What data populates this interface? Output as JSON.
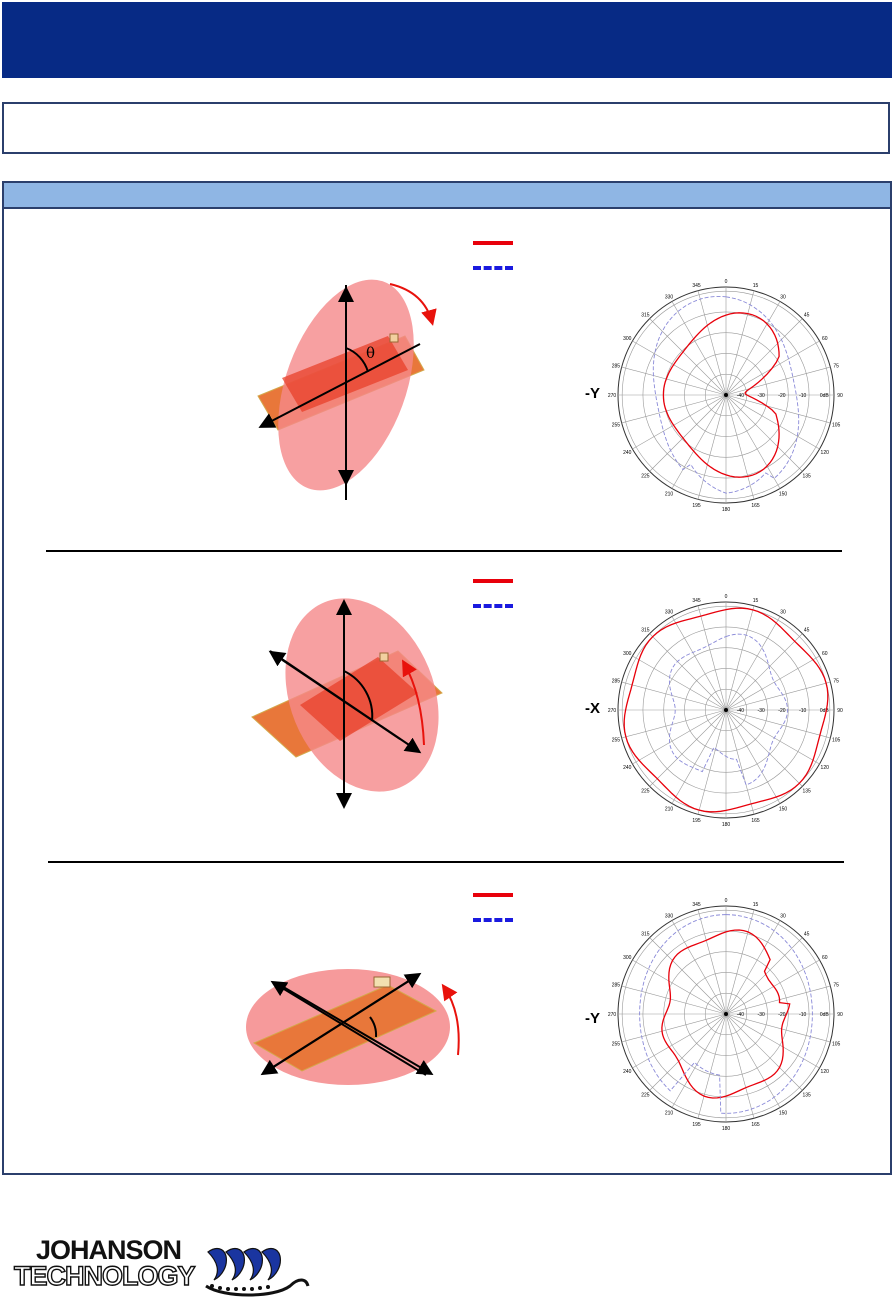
{
  "header": {
    "title": ""
  },
  "section": {
    "title": ""
  },
  "legend": {
    "solid": {
      "color": "#e8000b",
      "label": ""
    },
    "dashed": {
      "color": "#1a1adf",
      "label": ""
    }
  },
  "theta_label": "θ",
  "plots": [
    {
      "axis_label": "-Y",
      "pattern": "plot1"
    },
    {
      "axis_label": "-X",
      "pattern": "plot2"
    },
    {
      "axis_label": "-Y",
      "pattern": "plot3"
    }
  ],
  "polar_grid": {
    "angle_labels": [
      "0",
      "15",
      "30",
      "45",
      "60",
      "75",
      "90",
      "105",
      "120",
      "135",
      "150",
      "165",
      "180",
      "195",
      "210",
      "225",
      "240",
      "255",
      "270",
      "285",
      "300",
      "315",
      "330",
      "345"
    ],
    "ring_labels": [
      "-40",
      "-30",
      "-20",
      "-10",
      "0dB"
    ]
  },
  "logo": {
    "line1": "JOHANSON",
    "line2": "TECHNOLOGY"
  }
}
